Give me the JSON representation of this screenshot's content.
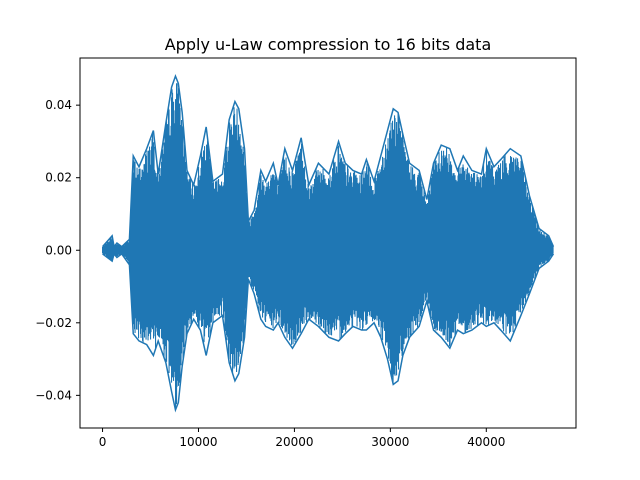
{
  "chart_data": {
    "type": "line",
    "title": "Apply u-Law compression to 16 bits data",
    "xlabel": "",
    "ylabel": "",
    "xlim": [
      -2350,
      49350
    ],
    "ylim": [
      -0.049,
      0.053
    ],
    "x_ticks": [
      0,
      10000,
      20000,
      30000,
      40000
    ],
    "x_tick_labels": [
      "0",
      "10000",
      "20000",
      "30000",
      "40000"
    ],
    "y_ticks": [
      -0.04,
      -0.02,
      0.0,
      0.02,
      0.04
    ],
    "y_tick_labels": [
      "−0.04",
      "−0.02",
      "0.00",
      "0.02",
      "0.04"
    ],
    "grid": false,
    "legend": "none",
    "series": [
      {
        "color": "#1f77b4",
        "sample_count": 47000,
        "envelope": {
          "x": [
            0,
            1000,
            1200,
            1500,
            2000,
            2800,
            3200,
            3800,
            4600,
            5300,
            5800,
            6600,
            7200,
            7600,
            7900,
            8300,
            8800,
            9500,
            10200,
            10800,
            11500,
            12500,
            13200,
            13800,
            14200,
            14800,
            15200,
            15800,
            16500,
            17000,
            17800,
            18300,
            19000,
            19800,
            20700,
            21500,
            22500,
            23600,
            24600,
            25300,
            26100,
            27000,
            27500,
            28300,
            29000,
            29700,
            30300,
            30800,
            31300,
            32000,
            33000,
            33800,
            34500,
            35300,
            36200,
            37000,
            37600,
            38500,
            39500,
            40000,
            40800,
            41500,
            42500,
            43600,
            44500,
            45500,
            46500,
            47000
          ],
          "upper": [
            0.001,
            0.004,
            0.001,
            0.002,
            0.001,
            0.003,
            0.026,
            0.023,
            0.028,
            0.033,
            0.021,
            0.035,
            0.045,
            0.048,
            0.046,
            0.038,
            0.022,
            0.018,
            0.026,
            0.034,
            0.019,
            0.021,
            0.036,
            0.041,
            0.039,
            0.028,
            0.008,
            0.011,
            0.022,
            0.019,
            0.024,
            0.018,
            0.028,
            0.022,
            0.031,
            0.018,
            0.024,
            0.021,
            0.03,
            0.024,
            0.022,
            0.021,
            0.025,
            0.019,
            0.026,
            0.033,
            0.039,
            0.038,
            0.032,
            0.024,
            0.022,
            0.014,
            0.024,
            0.029,
            0.028,
            0.022,
            0.026,
            0.022,
            0.021,
            0.028,
            0.023,
            0.025,
            0.028,
            0.026,
            0.015,
            0.006,
            0.004,
            0.001
          ],
          "lower": [
            -0.001,
            -0.003,
            -0.001,
            -0.002,
            -0.001,
            -0.004,
            -0.023,
            -0.025,
            -0.026,
            -0.029,
            -0.025,
            -0.031,
            -0.039,
            -0.044,
            -0.042,
            -0.032,
            -0.023,
            -0.019,
            -0.022,
            -0.029,
            -0.02,
            -0.018,
            -0.031,
            -0.036,
            -0.034,
            -0.024,
            -0.008,
            -0.012,
            -0.019,
            -0.021,
            -0.022,
            -0.02,
            -0.024,
            -0.027,
            -0.023,
            -0.019,
            -0.021,
            -0.024,
            -0.025,
            -0.023,
            -0.021,
            -0.022,
            -0.022,
            -0.02,
            -0.024,
            -0.03,
            -0.037,
            -0.036,
            -0.029,
            -0.024,
            -0.021,
            -0.014,
            -0.022,
            -0.024,
            -0.027,
            -0.022,
            -0.023,
            -0.022,
            -0.02,
            -0.021,
            -0.02,
            -0.022,
            -0.025,
            -0.018,
            -0.012,
            -0.005,
            -0.003,
            -0.001
          ]
        }
      }
    ]
  }
}
